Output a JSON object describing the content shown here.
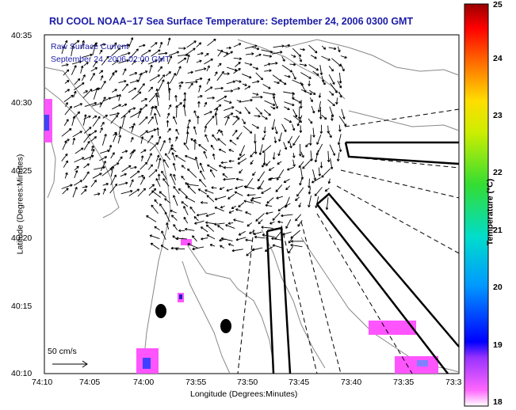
{
  "title": "RU COOL  NOAA−17  Sea Surface Temperature:  September 24, 2006 0300 GMT",
  "legend": {
    "line1": "Raw Surface Current",
    "line2": "September 24, 2006 02:00 GMT"
  },
  "axes": {
    "xlabel": "Longitude (Degrees:Minutes)",
    "ylabel": "Latitude (Degrees:Minutes)",
    "xticks": [
      "74:10",
      "74:05",
      "74:00",
      "73:55",
      "73:50",
      "73:45",
      "73:40",
      "73:35",
      "73:3"
    ],
    "yticks": [
      "40:35",
      "40:30",
      "40:25",
      "40:20",
      "40:15",
      "40:10"
    ]
  },
  "colorbar": {
    "label": "Temperature (°C)",
    "ticks": [
      "25",
      "24",
      "23",
      "22",
      "21",
      "20",
      "19",
      "18"
    ],
    "min": 18,
    "max": 25
  },
  "scale": {
    "label": "50 cm/s"
  },
  "colors": {
    "title": "#1c1ca8",
    "coast": "#888888",
    "vectors": "#000000"
  }
}
